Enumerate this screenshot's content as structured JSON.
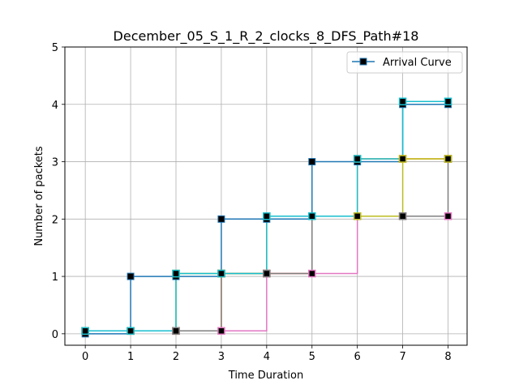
{
  "chart_data": {
    "type": "line",
    "title": "December_05_S_1_R_2_clocks_8_DFS_Path#18",
    "xlabel": "Time Duration",
    "ylabel": "Number of packets",
    "xlim": [
      -0.45,
      8.42
    ],
    "ylim": [
      -0.2,
      5.0
    ],
    "xticks": [
      "0",
      "1",
      "2",
      "3",
      "4",
      "5",
      "6",
      "7",
      "8"
    ],
    "yticks": [
      "0",
      "1",
      "2",
      "3",
      "4",
      "5"
    ],
    "grid": true,
    "legend": {
      "placement": "top-right",
      "entries": [
        "Arrival Curve"
      ]
    },
    "series": [
      {
        "name": "Arrival Curve",
        "color": "#1f77b4",
        "x": [
          0,
          1,
          2,
          3,
          4,
          5,
          6,
          7,
          8
        ],
        "y": [
          0,
          1,
          1,
          2,
          2,
          3,
          3,
          4,
          4
        ]
      },
      {
        "color": "#ff7f0e",
        "x": [
          0,
          1,
          2,
          3,
          4,
          5,
          6,
          7,
          8
        ],
        "y": [
          0.05,
          0.05,
          0.05,
          1.05,
          1.05,
          2.05,
          3.05,
          3.05,
          3.05
        ]
      },
      {
        "color": "#e377c2",
        "x": [
          0,
          1,
          2,
          3,
          4,
          5,
          6,
          7,
          8
        ],
        "y": [
          0.05,
          0.05,
          0.05,
          0.05,
          1.05,
          1.05,
          2.05,
          2.05,
          2.05
        ]
      },
      {
        "color": "#7f7f7f",
        "x": [
          0,
          1,
          2,
          3,
          4,
          5,
          6,
          7,
          8
        ],
        "y": [
          0.05,
          0.05,
          0.05,
          1.05,
          1.05,
          2.05,
          2.05,
          2.05,
          3.05
        ]
      },
      {
        "color": "#bcbd22",
        "x": [
          0,
          1,
          2,
          3,
          4,
          5,
          6,
          7,
          8
        ],
        "y": [
          0.05,
          0.05,
          1.05,
          1.05,
          2.05,
          2.05,
          2.05,
          3.05,
          3.05
        ]
      },
      {
        "color": "#17becf",
        "x": [
          0,
          1,
          2,
          3,
          4,
          5,
          6,
          7,
          8
        ],
        "y": [
          0.05,
          0.05,
          1.05,
          1.05,
          2.05,
          2.05,
          3.05,
          4.05,
          4.05
        ]
      }
    ]
  }
}
